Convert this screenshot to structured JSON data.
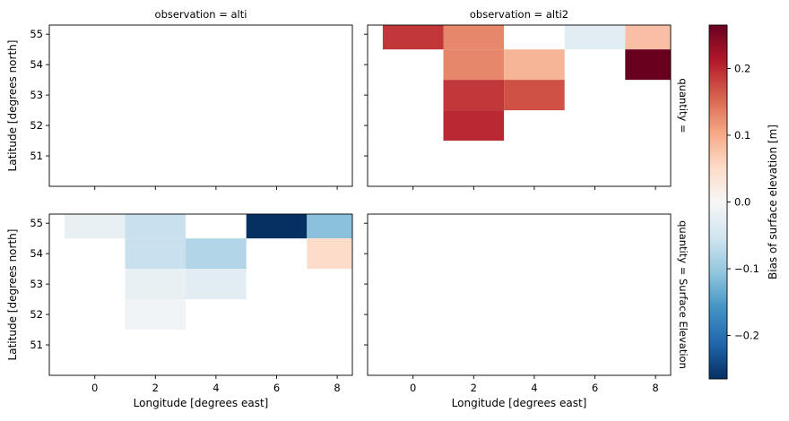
{
  "chart_data": {
    "type": "heatmap",
    "colormap": "RdBu_r",
    "x_label": "Longitude [degrees east]",
    "y_label": "Latitude [degrees north]",
    "x_ticks": [
      0,
      2,
      4,
      6,
      8
    ],
    "y_ticks": [
      51,
      52,
      53,
      54,
      55
    ],
    "x_range": [
      -1.5,
      8.5
    ],
    "y_range": [
      50.0,
      55.3
    ],
    "cell_width": 2,
    "cell_height": 1,
    "colorbar": {
      "label": "Bias of surface elevation [m]",
      "range": [
        -0.265,
        0.265
      ],
      "ticks": [
        -0.2,
        -0.1,
        0.0,
        0.1,
        0.2
      ],
      "tick_labels": [
        "−0.2",
        "−0.1",
        "0.0",
        "0.1",
        "0.2"
      ]
    },
    "row_facets": [
      "quantity =",
      "quantity = Surface Elevation"
    ],
    "col_facets": [
      "observation = alti",
      "observation = alti2"
    ],
    "panels": [
      {
        "row": 0,
        "col": 0,
        "cells": []
      },
      {
        "row": 0,
        "col": 1,
        "cells": [
          {
            "x": 0,
            "y": 55,
            "value": 0.19
          },
          {
            "x": 2,
            "y": 55,
            "value": 0.13
          },
          {
            "x": 6,
            "y": 55,
            "value": -0.03
          },
          {
            "x": 8,
            "y": 55,
            "value": 0.08
          },
          {
            "x": 2,
            "y": 54,
            "value": 0.13
          },
          {
            "x": 4,
            "y": 54,
            "value": 0.09
          },
          {
            "x": 8,
            "y": 54,
            "value": 0.265
          },
          {
            "x": 2,
            "y": 53,
            "value": 0.19
          },
          {
            "x": 4,
            "y": 53,
            "value": 0.17
          },
          {
            "x": 2,
            "y": 52,
            "value": 0.2
          }
        ]
      },
      {
        "row": 1,
        "col": 0,
        "cells": [
          {
            "x": 0,
            "y": 55,
            "value": -0.02
          },
          {
            "x": 2,
            "y": 55,
            "value": -0.06
          },
          {
            "x": 6,
            "y": 55,
            "value": -0.265
          },
          {
            "x": 8,
            "y": 55,
            "value": -0.11
          },
          {
            "x": 2,
            "y": 54,
            "value": -0.06
          },
          {
            "x": 4,
            "y": 54,
            "value": -0.08
          },
          {
            "x": 8,
            "y": 54,
            "value": 0.05
          },
          {
            "x": 2,
            "y": 53,
            "value": -0.02
          },
          {
            "x": 4,
            "y": 53,
            "value": -0.03
          },
          {
            "x": 2,
            "y": 52,
            "value": -0.01
          }
        ]
      },
      {
        "row": 1,
        "col": 1,
        "cells": []
      }
    ]
  }
}
